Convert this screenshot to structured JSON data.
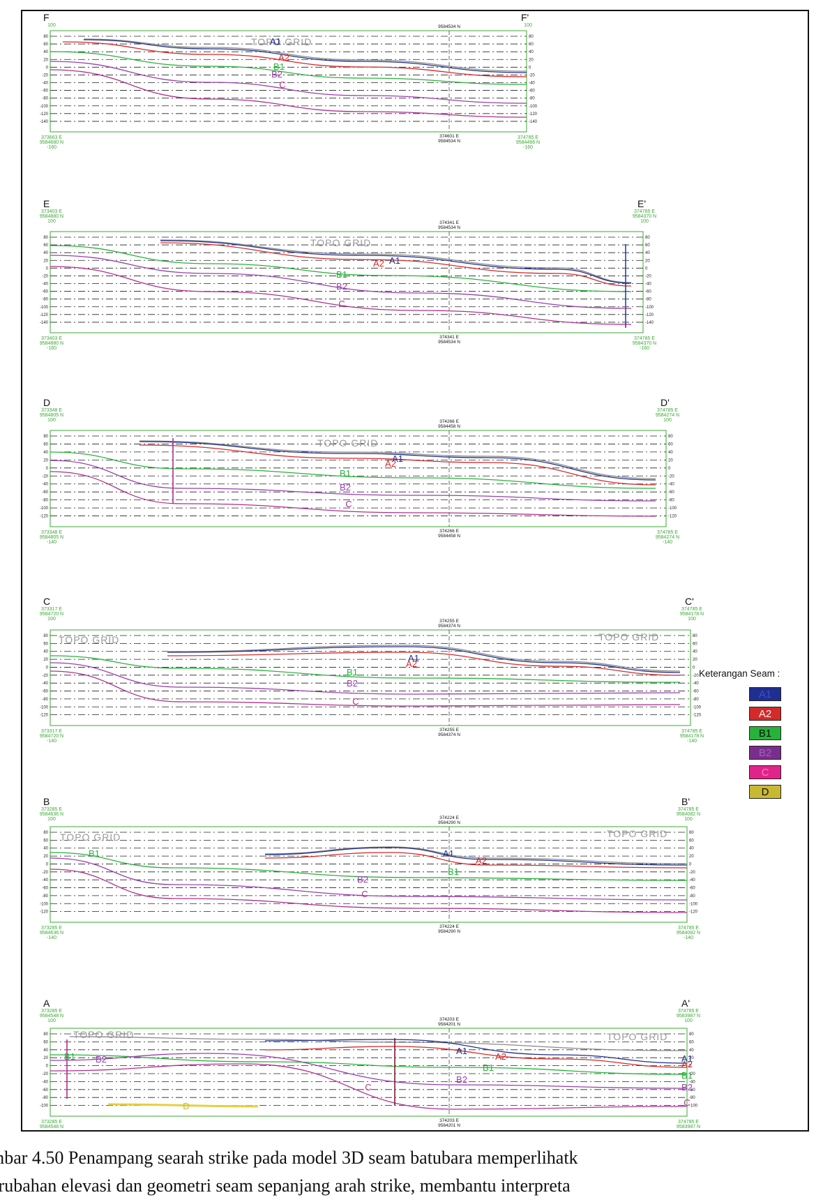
{
  "sections": [
    {
      "id": "F",
      "start_label": "F",
      "end_label": "F'",
      "start_top": [
        "100"
      ],
      "end_top": [
        "100"
      ],
      "start_bottom": [
        "373663 E",
        "9584680 N",
        "-160"
      ],
      "end_bottom": [
        "374785 E",
        "9584466 N",
        "-160"
      ],
      "mid_top": [
        "9584534 N"
      ],
      "mid_bottom": [
        "374601 E",
        "9584534 N"
      ],
      "ticks": [
        "80",
        "60",
        "40",
        "20",
        "0",
        "-20",
        "-40",
        "-60",
        "-80",
        "-100",
        "-120",
        "-140"
      ],
      "topo_labels": [
        "TOPO GRID"
      ],
      "seam_labels": [
        "A1",
        "A2",
        "B1",
        "B2",
        "C"
      ]
    },
    {
      "id": "E",
      "start_label": "E",
      "end_label": "E'",
      "start_top": [
        "373403 E",
        "9584880 N",
        "100"
      ],
      "end_top": [
        "374785 E",
        "9584370 N",
        "100"
      ],
      "start_bottom": [
        "373403 E",
        "9584880 N",
        "-160"
      ],
      "end_bottom": [
        "374785 E",
        "9584370 N",
        "-160"
      ],
      "mid_top": [
        "374341 E",
        "9584534 N"
      ],
      "mid_bottom": [
        "374341 E",
        "9584534 N"
      ],
      "ticks": [
        "80",
        "60",
        "40",
        "20",
        "0",
        "-20",
        "-40",
        "-60",
        "-80",
        "-100",
        "-120",
        "-140"
      ],
      "topo_labels": [
        "TOPO GRID"
      ],
      "seam_labels": [
        "A1",
        "A2",
        "B1",
        "B2",
        "C"
      ]
    },
    {
      "id": "D",
      "start_label": "D",
      "end_label": "D'",
      "start_top": [
        "373348 E",
        "9584805 N",
        "100"
      ],
      "end_top": [
        "374785 E",
        "9584274 N",
        "100"
      ],
      "start_bottom": [
        "373348 E",
        "9584805 N",
        "-140"
      ],
      "end_bottom": [
        "374785 E",
        "9584274 N",
        "-140"
      ],
      "mid_top": [
        "374266 E",
        "9584458 N"
      ],
      "mid_bottom": [
        "374266 E",
        "9584458 N"
      ],
      "ticks": [
        "80",
        "60",
        "40",
        "20",
        "0",
        "-20",
        "-40",
        "-60",
        "-80",
        "-100",
        "-120"
      ],
      "topo_labels": [
        "TOPO GRID"
      ],
      "seam_labels": [
        "A1",
        "A2",
        "B1",
        "B2",
        "C"
      ]
    },
    {
      "id": "C",
      "start_label": "C",
      "end_label": "C'",
      "start_top": [
        "373317 E",
        "9584720 N",
        "100"
      ],
      "end_top": [
        "374785 E",
        "9584178 N",
        "100"
      ],
      "start_bottom": [
        "373317 E",
        "9584720 N",
        "-140"
      ],
      "end_bottom": [
        "374785 E",
        "9584178 N",
        "-140"
      ],
      "mid_top": [
        "374255 E",
        "9584374 N"
      ],
      "mid_bottom": [
        "374255 E",
        "9584374 N"
      ],
      "ticks": [
        "80",
        "60",
        "40",
        "20",
        "0",
        "-20",
        "-40",
        "-60",
        "-80",
        "-100",
        "-120"
      ],
      "topo_labels": [
        "TOPO GRID",
        "TOPO GRID"
      ],
      "seam_labels": [
        "A1",
        "A2",
        "B1",
        "B2",
        "C"
      ]
    },
    {
      "id": "B",
      "start_label": "B",
      "end_label": "B'",
      "start_top": [
        "373285 E",
        "9584636 N",
        "100"
      ],
      "end_top": [
        "374785 E",
        "9584082 N",
        "100"
      ],
      "start_bottom": [
        "373285 E",
        "9584636 N",
        "-140"
      ],
      "end_bottom": [
        "374785 E",
        "9584082 N",
        "-140"
      ],
      "mid_top": [
        "374224 E",
        "9584290 N"
      ],
      "mid_bottom": [
        "374224 E",
        "9584290 N"
      ],
      "ticks": [
        "80",
        "60",
        "40",
        "20",
        "0",
        "-20",
        "-40",
        "-60",
        "-80",
        "-100",
        "-120"
      ],
      "topo_labels": [
        "TOPO GRID",
        "TOPO GRID"
      ],
      "seam_labels": [
        "B1",
        "A1",
        "A2",
        "B1",
        "B2",
        "C"
      ]
    },
    {
      "id": "A",
      "start_label": "A",
      "end_label": "A'",
      "start_top": [
        "373285 E",
        "9584548 N",
        "100"
      ],
      "end_top": [
        "374785 E",
        "9583987 N",
        "100"
      ],
      "start_bottom": [
        "373285 E",
        "9584548 N"
      ],
      "end_bottom": [
        "374785 E",
        "9583987 N"
      ],
      "mid_top": [
        "374203 E",
        "9584201 N"
      ],
      "mid_bottom": [
        "374203 E",
        "9584201 N"
      ],
      "ticks": [
        "80",
        "60",
        "40",
        "20",
        "0",
        "-20",
        "-40",
        "-60",
        "-80",
        "-100"
      ],
      "topo_labels": [
        "TOPO GRID",
        "TOPO GRID"
      ],
      "seam_labels": [
        "B1",
        "B2",
        "A1",
        "A2",
        "B1",
        "B2",
        "C",
        "D",
        "A1",
        "A2",
        "B1",
        "B2",
        "C"
      ]
    }
  ],
  "legend": {
    "title": "Keterangan Seam :",
    "items": [
      {
        "label": "A1",
        "color": "#1f2f8f",
        "text_color": "#3a4fd0"
      },
      {
        "label": "A2",
        "color": "#d42a2a",
        "text_color": "#f0f0f0"
      },
      {
        "label": "B1",
        "color": "#27b33a",
        "text_color": "#111111"
      },
      {
        "label": "B2",
        "color": "#7a2e8c",
        "text_color": "#a060c0"
      },
      {
        "label": "C",
        "color": "#e0248a",
        "text_color": "#ff80c0"
      },
      {
        "label": "D",
        "color": "#c8b832",
        "text_color": "#111111"
      }
    ]
  },
  "seam_colors": {
    "A1": "#1f2f8f",
    "A2": "#d42a2a",
    "B1": "#27b33a",
    "B2": "#9a3fb0",
    "C": "#b0308f",
    "D": "#e6d040",
    "TOPO": "#8a8a8a"
  },
  "caption": {
    "line1": "mbar 4.50 Penampang searah strike pada model 3D seam batubara memperlihatk",
    "line2": "erubahan elevasi dan geometri seam sepanjang arah strike, membantu interpreta"
  }
}
